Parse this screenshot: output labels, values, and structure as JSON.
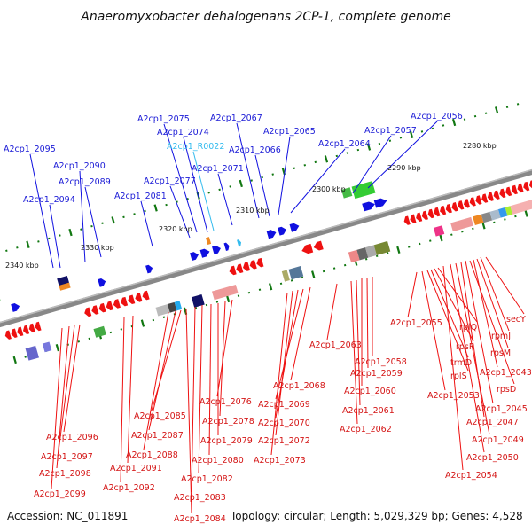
{
  "title": "Anaeromyxobacter dehalogenans 2CP-1, complete genome",
  "footer": {
    "accession": "Accession: NC_011891",
    "summary": "Topology: circular; Length: 5,029,329 bp; Genes: 4,528"
  },
  "colors": {
    "forward": "#1010e0",
    "reverse": "#ee1111",
    "rna": "#33bbee",
    "backbone": "#888888",
    "ticks": "#117711"
  },
  "kbp_marks": [
    "2280 kbp",
    "2290 kbp",
    "2300 kbp",
    "2310 kbp",
    "2320 kbp",
    "2330 kbp",
    "2340 kbp"
  ],
  "top_labels": [
    {
      "text": "A2cp1_2056",
      "color": "blue"
    },
    {
      "text": "A2cp1_2057",
      "color": "blue"
    },
    {
      "text": "A2cp1_2064",
      "color": "blue"
    },
    {
      "text": "A2cp1_2065",
      "color": "blue"
    },
    {
      "text": "A2cp1_2066",
      "color": "blue"
    },
    {
      "text": "A2cp1_2067",
      "color": "blue"
    },
    {
      "text": "A2cp1_2071",
      "color": "blue"
    },
    {
      "text": "A2cp1_R0022",
      "color": "cyan"
    },
    {
      "text": "A2cp1_2074",
      "color": "blue"
    },
    {
      "text": "A2cp1_2075",
      "color": "blue"
    },
    {
      "text": "A2cp1_2077",
      "color": "blue"
    },
    {
      "text": "A2cp1_2081",
      "color": "blue"
    },
    {
      "text": "A2cp1_2089",
      "color": "blue"
    },
    {
      "text": "A2cp1_2090",
      "color": "blue"
    },
    {
      "text": "A2cp1_2094",
      "color": "blue"
    },
    {
      "text": "A2cp1_2095",
      "color": "blue"
    }
  ],
  "bottom_labels": [
    {
      "text": "secY"
    },
    {
      "text": "rpmJ"
    },
    {
      "text": "rpsM"
    },
    {
      "text": "A2cp1_2043"
    },
    {
      "text": "rpsD"
    },
    {
      "text": "A2cp1_2045"
    },
    {
      "text": "A2cp1_2047"
    },
    {
      "text": "A2cp1_2049"
    },
    {
      "text": "A2cp1_2050"
    },
    {
      "text": "A2cp1_2054"
    },
    {
      "text": "rplQ"
    },
    {
      "text": "rpsP"
    },
    {
      "text": "trmD"
    },
    {
      "text": "rplS"
    },
    {
      "text": "A2cp1_2053"
    },
    {
      "text": "A2cp1_2055"
    },
    {
      "text": "A2cp1_2058"
    },
    {
      "text": "A2cp1_2059"
    },
    {
      "text": "A2cp1_2060"
    },
    {
      "text": "A2cp1_2061"
    },
    {
      "text": "A2cp1_2062"
    },
    {
      "text": "A2cp1_2063"
    },
    {
      "text": "A2cp1_2068"
    },
    {
      "text": "A2cp1_2069"
    },
    {
      "text": "A2cp1_2070"
    },
    {
      "text": "A2cp1_2072"
    },
    {
      "text": "A2cp1_2073"
    },
    {
      "text": "A2cp1_2076"
    },
    {
      "text": "A2cp1_2078"
    },
    {
      "text": "A2cp1_2079"
    },
    {
      "text": "A2cp1_2080"
    },
    {
      "text": "A2cp1_2082"
    },
    {
      "text": "A2cp1_2083"
    },
    {
      "text": "A2cp1_2084"
    },
    {
      "text": "A2cp1_2085"
    },
    {
      "text": "A2cp1_2087"
    },
    {
      "text": "A2cp1_2088"
    },
    {
      "text": "A2cp1_2091"
    },
    {
      "text": "A2cp1_2092"
    },
    {
      "text": "A2cp1_2096"
    },
    {
      "text": "A2cp1_2097"
    },
    {
      "text": "A2cp1_2098"
    },
    {
      "text": "A2cp1_2099"
    }
  ]
}
